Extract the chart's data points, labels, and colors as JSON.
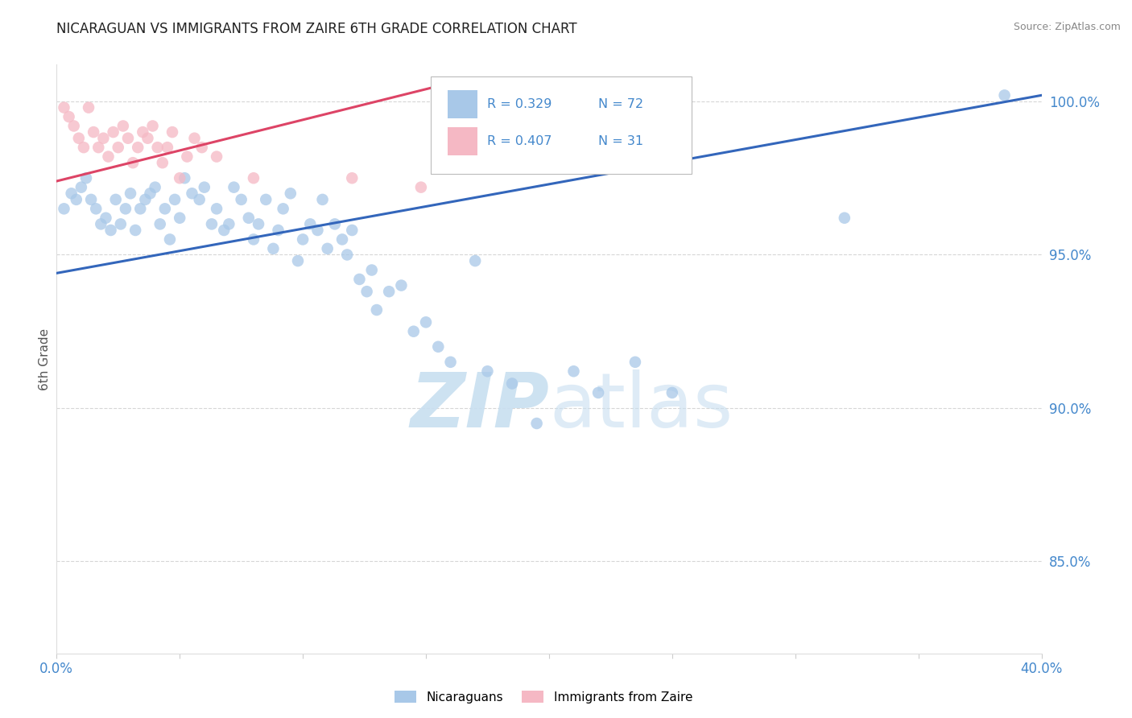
{
  "title": "NICARAGUAN VS IMMIGRANTS FROM ZAIRE 6TH GRADE CORRELATION CHART",
  "source": "Source: ZipAtlas.com",
  "ylabel": "6th Grade",
  "xmin": 0.0,
  "xmax": 0.4,
  "ymin": 0.82,
  "ymax": 1.012,
  "yticks": [
    0.85,
    0.9,
    0.95,
    1.0
  ],
  "ytick_labels": [
    "85.0%",
    "90.0%",
    "95.0%",
    "100.0%"
  ],
  "xticks": [
    0.0,
    0.05,
    0.1,
    0.15,
    0.2,
    0.25,
    0.3,
    0.35,
    0.4
  ],
  "xtick_labels": [
    "0.0%",
    "",
    "",
    "",
    "",
    "",
    "",
    "",
    "40.0%"
  ],
  "blue_R": 0.329,
  "blue_N": 72,
  "pink_R": 0.407,
  "pink_N": 31,
  "blue_color": "#a8c8e8",
  "pink_color": "#f5b8c4",
  "blue_line_color": "#3366bb",
  "pink_line_color": "#dd4466",
  "tick_color": "#4488cc",
  "watermark_color": "#c8dff0",
  "blue_scatter_x": [
    0.003,
    0.006,
    0.008,
    0.01,
    0.012,
    0.014,
    0.016,
    0.018,
    0.02,
    0.022,
    0.024,
    0.026,
    0.028,
    0.03,
    0.032,
    0.034,
    0.036,
    0.038,
    0.04,
    0.042,
    0.044,
    0.046,
    0.048,
    0.05,
    0.052,
    0.055,
    0.058,
    0.06,
    0.063,
    0.065,
    0.068,
    0.07,
    0.072,
    0.075,
    0.078,
    0.08,
    0.082,
    0.085,
    0.088,
    0.09,
    0.092,
    0.095,
    0.098,
    0.1,
    0.103,
    0.106,
    0.108,
    0.11,
    0.113,
    0.116,
    0.118,
    0.12,
    0.123,
    0.126,
    0.128,
    0.13,
    0.135,
    0.14,
    0.145,
    0.15,
    0.155,
    0.16,
    0.17,
    0.175,
    0.185,
    0.195,
    0.21,
    0.22,
    0.235,
    0.25,
    0.32,
    0.385
  ],
  "blue_scatter_y": [
    0.965,
    0.97,
    0.968,
    0.972,
    0.975,
    0.968,
    0.965,
    0.96,
    0.962,
    0.958,
    0.968,
    0.96,
    0.965,
    0.97,
    0.958,
    0.965,
    0.968,
    0.97,
    0.972,
    0.96,
    0.965,
    0.955,
    0.968,
    0.962,
    0.975,
    0.97,
    0.968,
    0.972,
    0.96,
    0.965,
    0.958,
    0.96,
    0.972,
    0.968,
    0.962,
    0.955,
    0.96,
    0.968,
    0.952,
    0.958,
    0.965,
    0.97,
    0.948,
    0.955,
    0.96,
    0.958,
    0.968,
    0.952,
    0.96,
    0.955,
    0.95,
    0.958,
    0.942,
    0.938,
    0.945,
    0.932,
    0.938,
    0.94,
    0.925,
    0.928,
    0.92,
    0.915,
    0.948,
    0.912,
    0.908,
    0.895,
    0.912,
    0.905,
    0.915,
    0.905,
    0.962,
    1.002
  ],
  "pink_scatter_x": [
    0.003,
    0.005,
    0.007,
    0.009,
    0.011,
    0.013,
    0.015,
    0.017,
    0.019,
    0.021,
    0.023,
    0.025,
    0.027,
    0.029,
    0.031,
    0.033,
    0.035,
    0.037,
    0.039,
    0.041,
    0.043,
    0.045,
    0.047,
    0.05,
    0.053,
    0.056,
    0.059,
    0.065,
    0.08,
    0.12,
    0.148
  ],
  "pink_scatter_y": [
    0.998,
    0.995,
    0.992,
    0.988,
    0.985,
    0.998,
    0.99,
    0.985,
    0.988,
    0.982,
    0.99,
    0.985,
    0.992,
    0.988,
    0.98,
    0.985,
    0.99,
    0.988,
    0.992,
    0.985,
    0.98,
    0.985,
    0.99,
    0.975,
    0.982,
    0.988,
    0.985,
    0.982,
    0.975,
    0.975,
    0.972
  ],
  "blue_trend_x": [
    0.0,
    0.4
  ],
  "blue_trend_y": [
    0.944,
    1.002
  ],
  "pink_trend_x": [
    0.0,
    0.155
  ],
  "pink_trend_y": [
    0.974,
    1.005
  ]
}
